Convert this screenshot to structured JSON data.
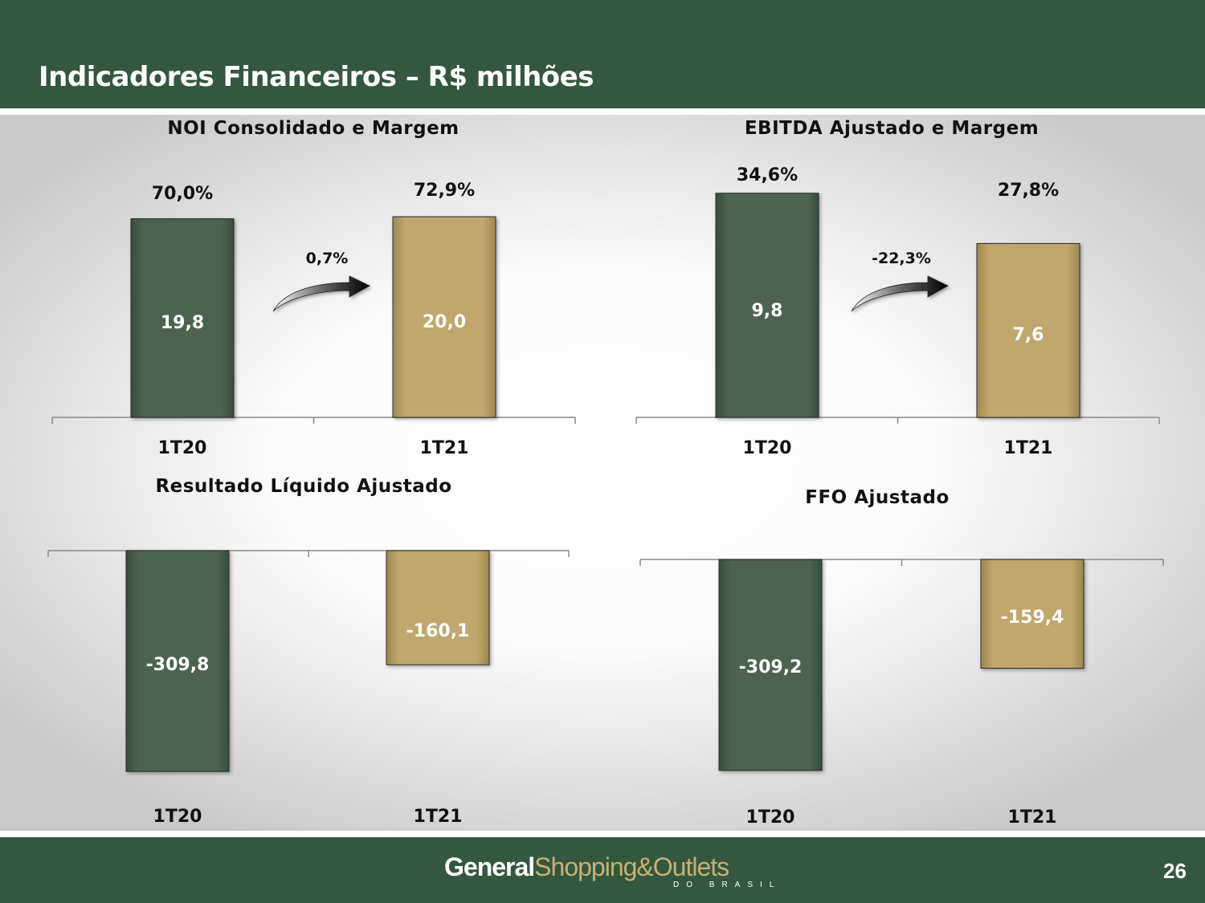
{
  "header": {
    "title": "Indicadores Financeiros – R$ milhões"
  },
  "footer": {
    "brand_general": "General",
    "brand_rest": "Shopping&Outlets",
    "brand_sub": "DO BRASIL",
    "page_number": "26"
  },
  "colors": {
    "header_green": "#34573f",
    "bar_green": "#4e6350",
    "bar_gold": "#c1a76d"
  },
  "chart_data": [
    {
      "type": "bar",
      "title": "NOI Consolidado e Margem",
      "categories": [
        "1T20",
        "1T21"
      ],
      "values": [
        19.8,
        20.0
      ],
      "value_labels": [
        "19,8",
        "20,0"
      ],
      "margins": [
        "70,0%",
        "72,9%"
      ],
      "change": "0,7%"
    },
    {
      "type": "bar",
      "title": "EBITDA Ajustado e Margem",
      "categories": [
        "1T20",
        "1T21"
      ],
      "values": [
        9.8,
        7.6
      ],
      "value_labels": [
        "9,8",
        "7,6"
      ],
      "margins": [
        "34,6%",
        "27,8%"
      ],
      "change": "-22,3%"
    },
    {
      "type": "bar",
      "title": "Resultado Líquido Ajustado",
      "categories": [
        "1T20",
        "1T21"
      ],
      "values": [
        -309.8,
        -160.1
      ],
      "value_labels": [
        "-309,8",
        "-160,1"
      ]
    },
    {
      "type": "bar",
      "title": "FFO Ajustado",
      "categories": [
        "1T20",
        "1T21"
      ],
      "values": [
        -309.2,
        -159.4
      ],
      "value_labels": [
        "-309,2",
        "-159,4"
      ]
    }
  ]
}
